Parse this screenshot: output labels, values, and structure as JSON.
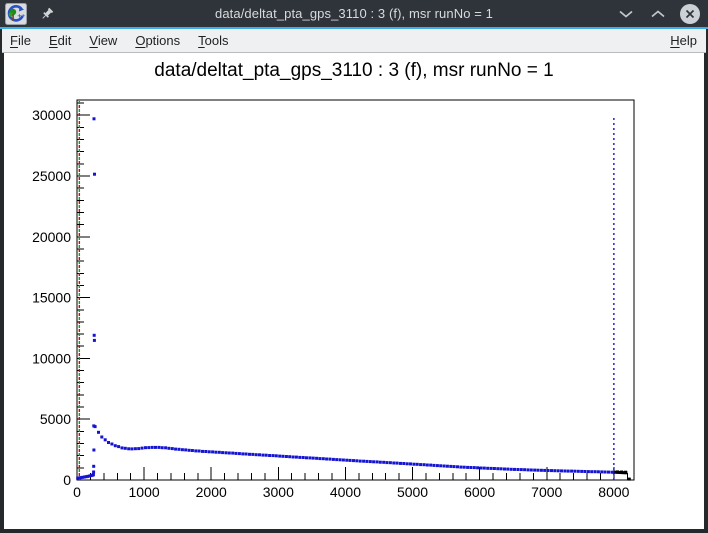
{
  "window": {
    "title": "data/deltat_pta_gps_3110 : 3 (f), msr runNo = 1",
    "buttons": {
      "minimize": "chevron-down",
      "maximize": "chevron-up",
      "close": "x"
    }
  },
  "menubar": {
    "items": [
      "File",
      "Edit",
      "View",
      "Options",
      "Tools"
    ],
    "right_items": [
      "Help"
    ]
  },
  "chart_data": {
    "type": "scatter",
    "title": "data/deltat_pta_gps_3110 : 3 (f), msr runNo = 1",
    "xlabel": "",
    "ylabel": "",
    "xlim": [
      0,
      8300
    ],
    "ylim": [
      0,
      31250
    ],
    "x_major_step": 1000,
    "x_minor_step": 200,
    "y_major_step": 5000,
    "y_minor_step": 1000,
    "x_tick_labels": [
      "0",
      "1000",
      "2000",
      "3000",
      "4000",
      "5000",
      "6000",
      "7000",
      "8000"
    ],
    "y_tick_labels": [
      "0",
      "5000",
      "10000",
      "15000",
      "20000",
      "25000",
      "30000"
    ],
    "grid": false,
    "legend": false,
    "marker": "square",
    "vlines": [
      {
        "name": "green-dashed-line",
        "x": 35,
        "y0": 0,
        "y1": 31250,
        "color": "#00a800",
        "dash": "3 5",
        "offset": 0
      },
      {
        "name": "red-dashed-line",
        "x": 35,
        "y0": 0,
        "y1": 31250,
        "color": "#e00000",
        "dash": "3 5",
        "offset": 4
      },
      {
        "name": "blue-dotted-line",
        "x": 8000,
        "y0": 0,
        "y1": 29800,
        "color": "#1414d2",
        "dash": "2 3",
        "offset": 0
      }
    ],
    "series": [
      {
        "name": "histogram-data",
        "color": "#1414d2",
        "points": [
          [
            10,
            150
          ],
          [
            35,
            175
          ],
          [
            60,
            200
          ],
          [
            85,
            225
          ],
          [
            110,
            250
          ],
          [
            135,
            275
          ],
          [
            160,
            300
          ],
          [
            185,
            330
          ],
          [
            210,
            362
          ],
          [
            230,
            392
          ],
          [
            245,
            425
          ],
          [
            247,
            655
          ],
          [
            249,
            1130
          ],
          [
            252,
            2465
          ],
          [
            250,
            4450
          ],
          [
            253,
            29700
          ],
          [
            256,
            11900
          ],
          [
            259,
            11480
          ],
          [
            261,
            25150
          ],
          [
            270,
            4395
          ],
          [
            320,
            3925
          ],
          [
            370,
            3540
          ],
          [
            420,
            3310
          ],
          [
            470,
            3085
          ],
          [
            520,
            2960
          ],
          [
            570,
            2820
          ],
          [
            620,
            2745
          ],
          [
            670,
            2640
          ],
          [
            720,
            2605
          ],
          [
            770,
            2565
          ],
          [
            820,
            2555
          ],
          [
            870,
            2575
          ],
          [
            920,
            2585
          ],
          [
            970,
            2625
          ],
          [
            1020,
            2655
          ],
          [
            1070,
            2665
          ],
          [
            1120,
            2685
          ],
          [
            1170,
            2680
          ],
          [
            1220,
            2685
          ],
          [
            1270,
            2660
          ],
          [
            1320,
            2645
          ],
          [
            1370,
            2605
          ],
          [
            1420,
            2585
          ],
          [
            1470,
            2545
          ],
          [
            1520,
            2525
          ],
          [
            1570,
            2490
          ],
          [
            1620,
            2475
          ],
          [
            1670,
            2440
          ],
          [
            1720,
            2425
          ],
          [
            1770,
            2395
          ],
          [
            1820,
            2385
          ],
          [
            1870,
            2355
          ],
          [
            1920,
            2345
          ],
          [
            1970,
            2315
          ],
          [
            2020,
            2310
          ],
          [
            2070,
            2285
          ],
          [
            2120,
            2275
          ],
          [
            2170,
            2250
          ],
          [
            2220,
            2240
          ],
          [
            2270,
            2218
          ],
          [
            2320,
            2210
          ],
          [
            2370,
            2185
          ],
          [
            2420,
            2175
          ],
          [
            2470,
            2150
          ],
          [
            2520,
            2140
          ],
          [
            2570,
            2115
          ],
          [
            2620,
            2105
          ],
          [
            2670,
            2080
          ],
          [
            2720,
            2070
          ],
          [
            2770,
            2048
          ],
          [
            2820,
            2038
          ],
          [
            2870,
            2015
          ],
          [
            2920,
            2005
          ],
          [
            2970,
            1988
          ],
          [
            3020,
            1968
          ],
          [
            3070,
            1952
          ],
          [
            3120,
            1930
          ],
          [
            3170,
            1918
          ],
          [
            3220,
            1895
          ],
          [
            3270,
            1885
          ],
          [
            3320,
            1862
          ],
          [
            3370,
            1850
          ],
          [
            3420,
            1828
          ],
          [
            3470,
            1818
          ],
          [
            3520,
            1798
          ],
          [
            3570,
            1782
          ],
          [
            3620,
            1760
          ],
          [
            3670,
            1748
          ],
          [
            3720,
            1725
          ],
          [
            3770,
            1715
          ],
          [
            3820,
            1692
          ],
          [
            3870,
            1680
          ],
          [
            3920,
            1658
          ],
          [
            3970,
            1648
          ],
          [
            4020,
            1628
          ],
          [
            4070,
            1612
          ],
          [
            4120,
            1592
          ],
          [
            4170,
            1580
          ],
          [
            4220,
            1558
          ],
          [
            4270,
            1548
          ],
          [
            4320,
            1528
          ],
          [
            4370,
            1516
          ],
          [
            4420,
            1495
          ],
          [
            4470,
            1485
          ],
          [
            4520,
            1462
          ],
          [
            4570,
            1452
          ],
          [
            4620,
            1430
          ],
          [
            4670,
            1420
          ],
          [
            4720,
            1398
          ],
          [
            4770,
            1388
          ],
          [
            4820,
            1368
          ],
          [
            4870,
            1356
          ],
          [
            4920,
            1335
          ],
          [
            4970,
            1325
          ],
          [
            5020,
            1302
          ],
          [
            5070,
            1292
          ],
          [
            5120,
            1268
          ],
          [
            5170,
            1256
          ],
          [
            5220,
            1234
          ],
          [
            5270,
            1222
          ],
          [
            5320,
            1200
          ],
          [
            5370,
            1188
          ],
          [
            5420,
            1166
          ],
          [
            5470,
            1154
          ],
          [
            5520,
            1132
          ],
          [
            5570,
            1120
          ],
          [
            5620,
            1098
          ],
          [
            5670,
            1086
          ],
          [
            5720,
            1064
          ],
          [
            5770,
            1052
          ],
          [
            5820,
            1040
          ],
          [
            5870,
            1028
          ],
          [
            5920,
            1016
          ],
          [
            5970,
            1004
          ],
          [
            6020,
            990
          ],
          [
            6070,
            978
          ],
          [
            6120,
            966
          ],
          [
            6170,
            954
          ],
          [
            6220,
            942
          ],
          [
            6270,
            930
          ],
          [
            6320,
            918
          ],
          [
            6370,
            906
          ],
          [
            6420,
            894
          ],
          [
            6470,
            882
          ],
          [
            6520,
            874
          ],
          [
            6570,
            864
          ],
          [
            6620,
            854
          ],
          [
            6670,
            844
          ],
          [
            6720,
            834
          ],
          [
            6770,
            824
          ],
          [
            6820,
            816
          ],
          [
            6870,
            808
          ],
          [
            6920,
            800
          ],
          [
            6970,
            792
          ],
          [
            7020,
            784
          ],
          [
            7070,
            776
          ],
          [
            7120,
            768
          ],
          [
            7170,
            760
          ],
          [
            7220,
            752
          ],
          [
            7270,
            744
          ],
          [
            7320,
            736
          ],
          [
            7370,
            728
          ],
          [
            7420,
            720
          ],
          [
            7470,
            712
          ],
          [
            7520,
            704
          ],
          [
            7570,
            698
          ],
          [
            7620,
            692
          ],
          [
            7670,
            686
          ],
          [
            7720,
            680
          ],
          [
            7770,
            674
          ],
          [
            7820,
            668
          ],
          [
            7870,
            660
          ],
          [
            7920,
            652
          ],
          [
            7970,
            644
          ],
          [
            8000,
            635
          ]
        ]
      },
      {
        "name": "overflow-bins",
        "color": "#000000",
        "points": [
          [
            8030,
            640
          ],
          [
            8060,
            625
          ],
          [
            8090,
            615
          ],
          [
            8120,
            605
          ],
          [
            8150,
            598
          ],
          [
            8180,
            592
          ],
          [
            8055,
            668
          ],
          [
            8115,
            655
          ],
          [
            8175,
            642
          ],
          [
            8230,
            75
          ]
        ]
      }
    ],
    "colors": {
      "marker": "#1414d2",
      "overflow": "#000000",
      "accent_line": "#3daee9"
    }
  }
}
